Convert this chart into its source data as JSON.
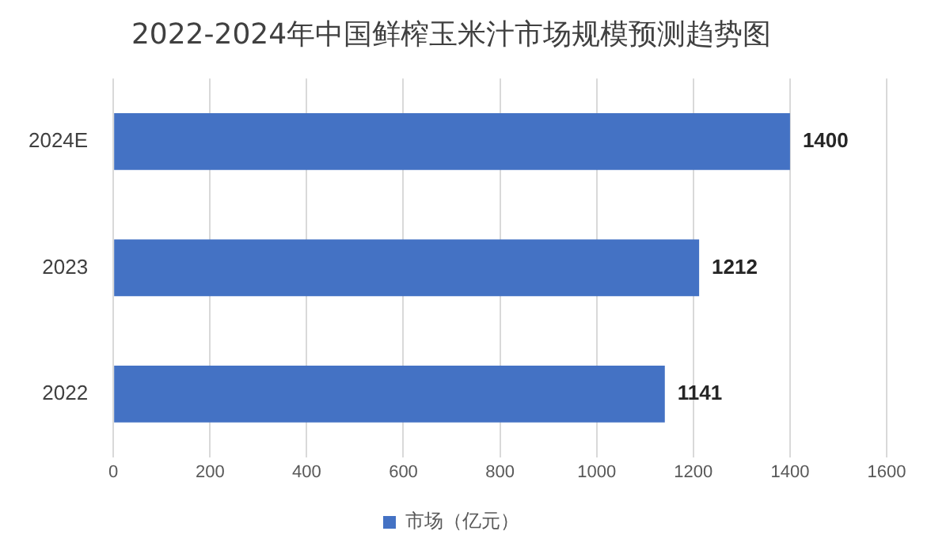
{
  "chart_data": {
    "type": "bar",
    "orientation": "horizontal",
    "title": "2022-2024年中国鲜榨玉米汁市场规模预测趋势图",
    "categories": [
      "2024E",
      "2023",
      "2022"
    ],
    "series": [
      {
        "name": "市场（亿元）",
        "color": "#4472c4",
        "values": [
          1400,
          1212,
          1141
        ]
      }
    ],
    "xlim": [
      0,
      1600
    ],
    "xticks": [
      0,
      200,
      400,
      600,
      800,
      1000,
      1200,
      1400,
      1600
    ],
    "grid": "x",
    "legend": "bottom",
    "data_labels": true
  }
}
